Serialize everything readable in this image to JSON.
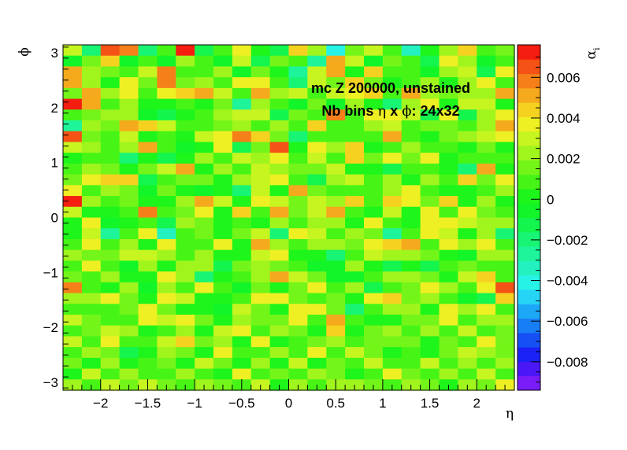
{
  "chart_data": {
    "type": "heatmap",
    "title_line1": "mc Z 200000, unstained",
    "title_line2_a": "Nb bins",
    "title_line2_eta": "η",
    "title_line2_x": "x",
    "title_line2_phi": "ϕ",
    "title_line2_b": ": 24x32",
    "xlabel": "η",
    "ylabel": "ϕ",
    "zlabel": "α",
    "zlabel_sub": "i",
    "xlim": [
      -2.4,
      2.4
    ],
    "ylim": [
      -3.1416,
      3.1416
    ],
    "zlim": [
      -0.0094,
      0.0076
    ],
    "x_bins": 24,
    "y_bins": 32,
    "x_ticks": [
      {
        "v": -2,
        "label": "−2"
      },
      {
        "v": -1.5,
        "label": "−1.5"
      },
      {
        "v": -1,
        "label": "−1"
      },
      {
        "v": -0.5,
        "label": "−0.5"
      },
      {
        "v": 0,
        "label": "0"
      },
      {
        "v": 0.5,
        "label": "0.5"
      },
      {
        "v": 1,
        "label": "1"
      },
      {
        "v": 1.5,
        "label": "1.5"
      },
      {
        "v": 2,
        "label": "2"
      }
    ],
    "y_ticks": [
      {
        "v": -3,
        "label": "−3"
      },
      {
        "v": -2,
        "label": "−2"
      },
      {
        "v": -1,
        "label": "−1"
      },
      {
        "v": 0,
        "label": "0"
      },
      {
        "v": 1,
        "label": "1"
      },
      {
        "v": 2,
        "label": "2"
      },
      {
        "v": 3,
        "label": "3"
      }
    ],
    "z_ticks": [
      {
        "v": -0.008,
        "label": "−0.008"
      },
      {
        "v": -0.006,
        "label": "−0.006"
      },
      {
        "v": -0.004,
        "label": "−0.004"
      },
      {
        "v": -0.002,
        "label": "−0.002"
      },
      {
        "v": 0,
        "label": "0"
      },
      {
        "v": 0.002,
        "label": "0.002"
      },
      {
        "v": 0.004,
        "label": "0.004"
      },
      {
        "v": 0.006,
        "label": "0.006"
      }
    ],
    "palette": [
      "#7a1cf7",
      "#4a17f7",
      "#1a22f5",
      "#1550f5",
      "#187ef5",
      "#1da8f7",
      "#26d4f5",
      "#27f2e6",
      "#23f2c0",
      "#1ef49a",
      "#18f574",
      "#14f54e",
      "#12f528",
      "#1ef51a",
      "#46f516",
      "#74f519",
      "#a0f51d",
      "#c6f520",
      "#eef023",
      "#f5d220",
      "#f5aa1d",
      "#f58019",
      "#f55215",
      "#f51d10"
    ],
    "values": [
      [
        0.0032,
        -0.0018,
        0.0066,
        0.0058,
        -0.0022,
        0.0008,
        0.007,
        -0.0016,
        0.0012,
        0.004,
        0.0004,
        -0.0012,
        0.0046,
        0.0024,
        -0.0042,
        0.0014,
        0.003,
        0.0008,
        -0.0036,
        0.0002,
        0.0022,
        0.0046,
        0.0006,
        0.0018
      ],
      [
        -0.0004,
        0.0018,
        0.0042,
        -0.0006,
        0.001,
        -0.0002,
        0.0024,
        0.0008,
        -0.0008,
        0.003,
        -0.0014,
        0.0016,
        0.0006,
        -0.0024,
        0.0048,
        0.0028,
        -0.0004,
        0.0018,
        0.0012,
        -0.001,
        0.0038,
        0.0024,
        -0.0002,
        0.001
      ],
      [
        0.0054,
        0.0026,
        0.0016,
        0.0012,
        0.003,
        0.006,
        0.001,
        0.0006,
        0.002,
        -0.0004,
        0.0016,
        0.0004,
        -0.0026,
        0.0028,
        0.0054,
        0.0004,
        0.0044,
        0.0012,
        0.001,
        -0.0008,
        0.002,
        0.0032,
        -0.0016,
        0.0038
      ],
      [
        0.0048,
        0.0024,
        0.0002,
        0.0036,
        0.0018,
        0.006,
        0.0016,
        0.0024,
        0.001,
        0.004,
        0.0034,
        0.0008,
        -0.0018,
        0.003,
        0.0014,
        0.0044,
        0.0018,
        0.0004,
        0.0006,
        0.0026,
        0.0002,
        0.0024,
        0.004,
        0.0008
      ],
      [
        0.0014,
        0.005,
        0.002,
        0.0034,
        0.001,
        0.004,
        0.0044,
        0.0054,
        0.0032,
        0.0012,
        0.005,
        0.0024,
        0.0028,
        0.0006,
        0.003,
        0.0036,
        0.0046,
        0.001,
        0.0052,
        0.0024,
        0.0016,
        0.0026,
        0.0022,
        0.0048
      ],
      [
        0.007,
        0.0048,
        0.001,
        0.002,
        0.0,
        0.0004,
        0.0008,
        0.0004,
        0.0016,
        -0.0028,
        0.0024,
        0.0012,
        -0.0002,
        0.0018,
        -0.0008,
        0.0022,
        0.0004,
        -0.0022,
        0.0024,
        0.0036,
        0.0,
        0.0032,
        0.0028,
        0.0
      ],
      [
        0.0006,
        0.0016,
        0.0024,
        0.0022,
        -0.0008,
        -0.0014,
        0.0002,
        0.001,
        0.0024,
        0.0028,
        0.0032,
        -0.0016,
        0.0016,
        0.0008,
        0.0056,
        0.001,
        0.0034,
        0.004,
        0.0032,
        -0.001,
        0.0038,
        -0.0012,
        0.0024,
        0.0034
      ],
      [
        -0.0024,
        0.002,
        0.0018,
        0.0054,
        0.0046,
        0.0032,
        0.0012,
        0.0008,
        0.0018,
        0.0026,
        0.0012,
        0.0022,
        0.0008,
        0.0042,
        0.001,
        0.0012,
        0.002,
        0.003,
        0.0008,
        0.0014,
        0.0016,
        0.0006,
        0.0026,
        0.0048
      ],
      [
        0.0062,
        0.0016,
        0.0008,
        0.0032,
        0.0,
        0.001,
        0.0004,
        0.003,
        0.004,
        0.006,
        0.0042,
        0.0014,
        -0.002,
        0.001,
        0.0006,
        0.0006,
        0.0012,
        0.005,
        0.0008,
        0.0004,
        0.0018,
        0.0024,
        0.0028,
        0.0034
      ],
      [
        0.0028,
        0.002,
        0.0012,
        0.0024,
        0.005,
        0.0008,
        -0.0002,
        0.0002,
        0.0036,
        -0.0012,
        0.0014,
        0.0064,
        0.0,
        0.004,
        0.0024,
        0.0044,
        0.0,
        0.0008,
        0.002,
        0.0006,
        0.0012,
        0.0,
        0.0014,
        0.0004
      ],
      [
        0.0004,
        0.001,
        0.0012,
        -0.0022,
        0.0004,
        -0.001,
        0.0004,
        0.0024,
        0.0012,
        0.003,
        0.0024,
        0.004,
        0.001,
        0.0028,
        0.0012,
        0.0046,
        0.0014,
        0.0038,
        0.0014,
        0.0034,
        0.0004,
        0.0006,
        0.0008,
        0.0008
      ],
      [
        0.001,
        0.0024,
        0.0018,
        0.0004,
        0.0016,
        0.0028,
        0.0048,
        0.0,
        0.002,
        0.0012,
        0.0028,
        0.0024,
        0.0014,
        0.0016,
        0.0032,
        0.0,
        0.0004,
        -0.0014,
        0.001,
        0.0012,
        0.0004,
        -0.0018,
        0.005,
        0.0
      ],
      [
        0.0016,
        0.004,
        0.0046,
        0.0044,
        -0.001,
        0.0008,
        0.0016,
        0.0016,
        0.0,
        0.002,
        0.003,
        0.0036,
        0.001,
        -0.0012,
        0.0022,
        0.0032,
        0.0012,
        0.0022,
        0.0,
        0.0024,
        0.0012,
        0.0044,
        0.0016,
        0.004
      ],
      [
        0.004,
        0.0008,
        0.0024,
        0.0016,
        -0.0004,
        0.0016,
        0.0,
        -0.0002,
        0.0004,
        -0.0022,
        0.0028,
        0.0004,
        0.0048,
        0.0014,
        0.001,
        0.001,
        0.0012,
        0.0026,
        0.004,
        0.0012,
        0.0,
        0.0002,
        0.001,
        0.0026
      ],
      [
        0.0074,
        0.0024,
        0.0008,
        0.0014,
        0.0004,
        0.0004,
        0.002,
        0.005,
        0.003,
        0.0002,
        0.0034,
        0.003,
        0.0014,
        0.0032,
        0.0022,
        0.0046,
        0.001,
        0.0044,
        0.004,
        0.0016,
        0.0044,
        0.0004,
        0.0026,
        0.0004
      ],
      [
        0.003,
        0.0,
        0.0002,
        0.0012,
        0.0058,
        0.0008,
        0.0018,
        0.0036,
        0.0,
        0.0044,
        0.001,
        0.0054,
        0.0016,
        0.003,
        0.0054,
        0.001,
        0.0,
        0.0028,
        0.0002,
        0.0036,
        0.001,
        0.0036,
        0.0016,
        0.0012
      ],
      [
        0.0,
        0.0034,
        -0.0006,
        0.0004,
        0.0012,
        -0.0016,
        0.002,
        0.0016,
        0.0004,
        0.0006,
        0.0004,
        0.0024,
        0.001,
        0.0024,
        0.0022,
        0.0,
        0.004,
        0.0006,
        0.0,
        0.0034,
        0.004,
        0.003,
        0.002,
        0.0024
      ],
      [
        0.0002,
        0.0028,
        -0.0026,
        0.001,
        0.0036,
        -0.0032,
        0.0012,
        0.0018,
        0.0002,
        0.0018,
        0.0032,
        -0.002,
        0.004,
        0.0028,
        0.001,
        0.002,
        0.0016,
        -0.003,
        0.0008,
        0.004,
        0.0028,
        0.0,
        0.0022,
        -0.0022
      ],
      [
        0.0012,
        0.0036,
        0.0012,
        0.002,
        0.0004,
        0.0034,
        0.0006,
        0.001,
        0.004,
        0.0002,
        0.005,
        0.002,
        0.0012,
        0.0026,
        0.002,
        0.0014,
        0.0038,
        0.0046,
        0.0054,
        0.0008,
        0.004,
        0.0024,
        0.0038,
        0.001
      ],
      [
        0.002,
        0.0018,
        0.0016,
        0.0028,
        0.003,
        0.002,
        0.0008,
        0.0024,
        0.0002,
        0.0004,
        0.0028,
        0.004,
        0.0002,
        0.0004,
        -0.0018,
        0.001,
        0.0028,
        0.0024,
        0.0026,
        0.0018,
        0.0004,
        -0.0008,
        0.0024,
        0.002
      ],
      [
        0.001,
        0.004,
        0.0012,
        -0.0002,
        0.0022,
        0.0004,
        0.002,
        0.0024,
        -0.0016,
        0.0018,
        0.0026,
        0.0016,
        0.001,
        -0.0008,
        -0.0006,
        0.0024,
        0.0,
        -0.0016,
        0.0,
        -0.0014,
        0.0006,
        0.0018,
        0.001,
        0.0012
      ],
      [
        0.0018,
        0.001,
        0.002,
        0.0,
        0.0002,
        0.0036,
        0.002,
        -0.0022,
        0.0,
        0.0008,
        0.002,
        0.0048,
        0.0032,
        0.0016,
        -0.0006,
        -0.0008,
        0.0012,
        0.0026,
        0.0022,
        0.0018,
        0.0,
        0.0028,
        0.0042,
        0.0012
      ],
      [
        0.0056,
        0.0012,
        0.0002,
        0.002,
        -0.0002,
        0.0024,
        0.001,
        0.0036,
        0.0012,
        -0.0002,
        0.0014,
        0.0,
        0.0016,
        0.0038,
        0.0006,
        0.002,
        -0.0012,
        0.0012,
        0.0014,
        0.0038,
        0.0024,
        0.0008,
        0.004,
        0.0064
      ],
      [
        0.0022,
        0.002,
        0.0036,
        0.0014,
        0.0004,
        0.0038,
        0.003,
        0.0004,
        0.0,
        0.0012,
        0.004,
        0.0034,
        0.0014,
        0.0008,
        0.0018,
        0.0004,
        0.0036,
        0.0042,
        0.0016,
        0.0024,
        0.0008,
        -0.0006,
        -0.0014,
        0.0044
      ],
      [
        0.0012,
        0.0008,
        0.0006,
        0.0014,
        0.0034,
        0.0014,
        0.0,
        0.0002,
        -0.0008,
        0.0032,
        0.0014,
        0.0004,
        0.0036,
        0.0034,
        0.0018,
        -0.0018,
        0.0012,
        0.0024,
        0.002,
        0.0004,
        0.0036,
        0.002,
        0.0038,
        0.0008
      ],
      [
        0.0028,
        0.0014,
        0.0012,
        0.0012,
        0.0036,
        0.0028,
        0.004,
        0.0014,
        0.0002,
        0.002,
        0.0014,
        0.0014,
        0.0038,
        0.001,
        0.0048,
        0.001,
        0.0002,
        0.0004,
        0.0014,
        0.0016,
        0.0034,
        0.0008,
        0.0026,
        0.0022
      ],
      [
        0.0008,
        0.0018,
        0.0032,
        0.0022,
        0.0002,
        0.001,
        0.002,
        0.0004,
        0.003,
        0.004,
        0.0012,
        0.0026,
        0.0016,
        0.0002,
        0.0046,
        0.0002,
        0.0014,
        0.0024,
        0.001,
        0.0022,
        0.0012,
        0.0028,
        0.0012,
        0.0014
      ],
      [
        0.0028,
        0.0008,
        0.0034,
        0.001,
        0.001,
        0.003,
        0.0044,
        0.0016,
        0.0022,
        0.0002,
        0.0034,
        0.0002,
        0.0006,
        0.0014,
        0.0024,
        0.0012,
        0.0014,
        0.0014,
        0.0018,
        0.0004,
        0.0016,
        0.001,
        0.0036,
        0.0016
      ],
      [
        0.0006,
        0.0024,
        0.0014,
        -0.0012,
        0.0004,
        0.0022,
        0.0018,
        0.0,
        0.0034,
        0.001,
        0.0012,
        0.002,
        0.001,
        0.0036,
        0.0008,
        0.003,
        0.0018,
        0.0,
        0.0006,
        0.0004,
        0.0016,
        0.0028,
        0.0022,
        0.0014
      ],
      [
        0.0018,
        0.0004,
        0.0024,
        0.0002,
        0.0006,
        0.0014,
        0.0,
        0.0028,
        0.0016,
        0.0002,
        0.0024,
        0.0004,
        0.003,
        0.0002,
        0.0016,
        0.0008,
        0.0028,
        0.0012,
        0.0008,
        0.0032,
        0.001,
        0.002,
        0.0008,
        0.0026
      ],
      [
        0.0004,
        0.003,
        0.001,
        0.002,
        0.0012,
        0.0006,
        0.0022,
        0.001,
        0.0004,
        0.0034,
        0.0008,
        0.0016,
        0.0006,
        0.0024,
        0.0014,
        0.0004,
        0.0012,
        0.0034,
        0.0018,
        0.0006,
        0.0022,
        0.0012,
        0.0032,
        0.0006
      ],
      [
        0.002,
        0.0012,
        0.0028,
        0.0016,
        0.003,
        0.0018,
        0.0008,
        0.0026,
        0.0014,
        0.0012,
        0.003,
        0.0002,
        0.002,
        0.0012,
        0.0024,
        0.0022,
        0.0016,
        0.0006,
        0.0024,
        0.0014,
        0.0004,
        0.0026,
        0.0016,
        0.004
      ]
    ]
  }
}
